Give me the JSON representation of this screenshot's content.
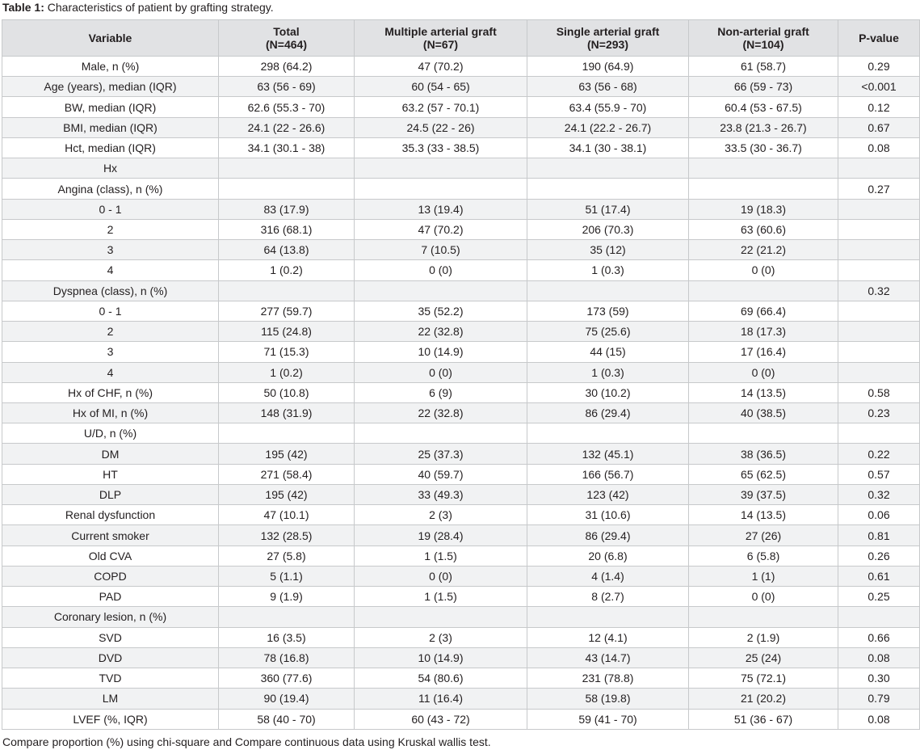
{
  "caption": {
    "label": "Table 1:",
    "text": " Characteristics of patient by grafting strategy."
  },
  "headers": [
    {
      "line1": "Variable",
      "line2": ""
    },
    {
      "line1": "Total",
      "line2": "(N=464)"
    },
    {
      "line1": "Multiple arterial graft",
      "line2": "(N=67)"
    },
    {
      "line1": "Single arterial graft",
      "line2": "(N=293)"
    },
    {
      "line1": "Non-arterial graft",
      "line2": "(N=104)"
    },
    {
      "line1": "P-value",
      "line2": ""
    }
  ],
  "rows": [
    [
      "Male, n (%)",
      "298 (64.2)",
      "47 (70.2)",
      "190 (64.9)",
      "61 (58.7)",
      "0.29"
    ],
    [
      "Age (years), median (IQR)",
      "63 (56 - 69)",
      "60 (54 - 65)",
      "63 (56 - 68)",
      "66 (59 - 73)",
      "<0.001"
    ],
    [
      "BW, median (IQR)",
      "62.6 (55.3 - 70)",
      "63.2 (57 - 70.1)",
      "63.4 (55.9 - 70)",
      "60.4 (53 - 67.5)",
      "0.12"
    ],
    [
      "BMI, median (IQR)",
      "24.1 (22 - 26.6)",
      "24.5 (22 - 26)",
      "24.1 (22.2 - 26.7)",
      "23.8 (21.3 - 26.7)",
      "0.67"
    ],
    [
      "Hct, median (IQR)",
      "34.1 (30.1 - 38)",
      "35.3 (33 - 38.5)",
      "34.1 (30 - 38.1)",
      "33.5 (30 - 36.7)",
      "0.08"
    ],
    [
      "Hx",
      "",
      "",
      "",
      "",
      ""
    ],
    [
      "Angina (class), n (%)",
      "",
      "",
      "",
      "",
      "0.27"
    ],
    [
      "0 - 1",
      "83 (17.9)",
      "13 (19.4)",
      "51 (17.4)",
      "19 (18.3)",
      ""
    ],
    [
      "2",
      "316 (68.1)",
      "47 (70.2)",
      "206 (70.3)",
      "63 (60.6)",
      ""
    ],
    [
      "3",
      "64 (13.8)",
      "7 (10.5)",
      "35 (12)",
      "22 (21.2)",
      ""
    ],
    [
      "4",
      "1 (0.2)",
      "0 (0)",
      "1 (0.3)",
      "0 (0)",
      ""
    ],
    [
      "Dyspnea (class), n (%)",
      "",
      "",
      "",
      "",
      "0.32"
    ],
    [
      "0 - 1",
      "277 (59.7)",
      "35 (52.2)",
      "173 (59)",
      "69 (66.4)",
      ""
    ],
    [
      "2",
      "115 (24.8)",
      "22 (32.8)",
      "75 (25.6)",
      "18 (17.3)",
      ""
    ],
    [
      "3",
      "71 (15.3)",
      "10 (14.9)",
      "44 (15)",
      "17 (16.4)",
      ""
    ],
    [
      "4",
      "1 (0.2)",
      "0 (0)",
      "1 (0.3)",
      "0 (0)",
      ""
    ],
    [
      "Hx of CHF, n (%)",
      "50 (10.8)",
      "6 (9)",
      "30 (10.2)",
      "14 (13.5)",
      "0.58"
    ],
    [
      "Hx of MI, n (%)",
      "148 (31.9)",
      "22 (32.8)",
      "86 (29.4)",
      "40 (38.5)",
      "0.23"
    ],
    [
      "U/D, n (%)",
      "",
      "",
      "",
      "",
      ""
    ],
    [
      "DM",
      "195 (42)",
      "25 (37.3)",
      "132 (45.1)",
      "38 (36.5)",
      "0.22"
    ],
    [
      "HT",
      "271 (58.4)",
      "40 (59.7)",
      "166 (56.7)",
      "65 (62.5)",
      "0.57"
    ],
    [
      "DLP",
      "195 (42)",
      "33 (49.3)",
      "123 (42)",
      "39 (37.5)",
      "0.32"
    ],
    [
      "Renal dysfunction",
      "47 (10.1)",
      "2 (3)",
      "31 (10.6)",
      "14 (13.5)",
      "0.06"
    ],
    [
      "Current smoker",
      "132 (28.5)",
      "19 (28.4)",
      "86 (29.4)",
      "27 (26)",
      "0.81"
    ],
    [
      "Old CVA",
      "27 (5.8)",
      "1 (1.5)",
      "20 (6.8)",
      "6 (5.8)",
      "0.26"
    ],
    [
      "COPD",
      "5 (1.1)",
      "0 (0)",
      "4 (1.4)",
      "1 (1)",
      "0.61"
    ],
    [
      "PAD",
      "9 (1.9)",
      "1 (1.5)",
      "8 (2.7)",
      "0 (0)",
      "0.25"
    ],
    [
      "Coronary lesion, n (%)",
      "",
      "",
      "",
      "",
      ""
    ],
    [
      "SVD",
      "16 (3.5)",
      "2 (3)",
      "12 (4.1)",
      "2 (1.9)",
      "0.66"
    ],
    [
      "DVD",
      "78 (16.8)",
      "10 (14.9)",
      "43 (14.7)",
      "25 (24)",
      "0.08"
    ],
    [
      "TVD",
      "360 (77.6)",
      "54 (80.6)",
      "231 (78.8)",
      "75 (72.1)",
      "0.30"
    ],
    [
      "LM",
      "90 (19.4)",
      "11 (16.4)",
      "58 (19.8)",
      "21 (20.2)",
      "0.79"
    ],
    [
      "LVEF (%, IQR)",
      "58 (40 - 70)",
      "60 (43 - 72)",
      "59 (41 - 70)",
      "51 (36 - 67)",
      "0.08"
    ]
  ],
  "footnote": "Compare proportion (%) using chi-square and Compare continuous data using Kruskal wallis test."
}
